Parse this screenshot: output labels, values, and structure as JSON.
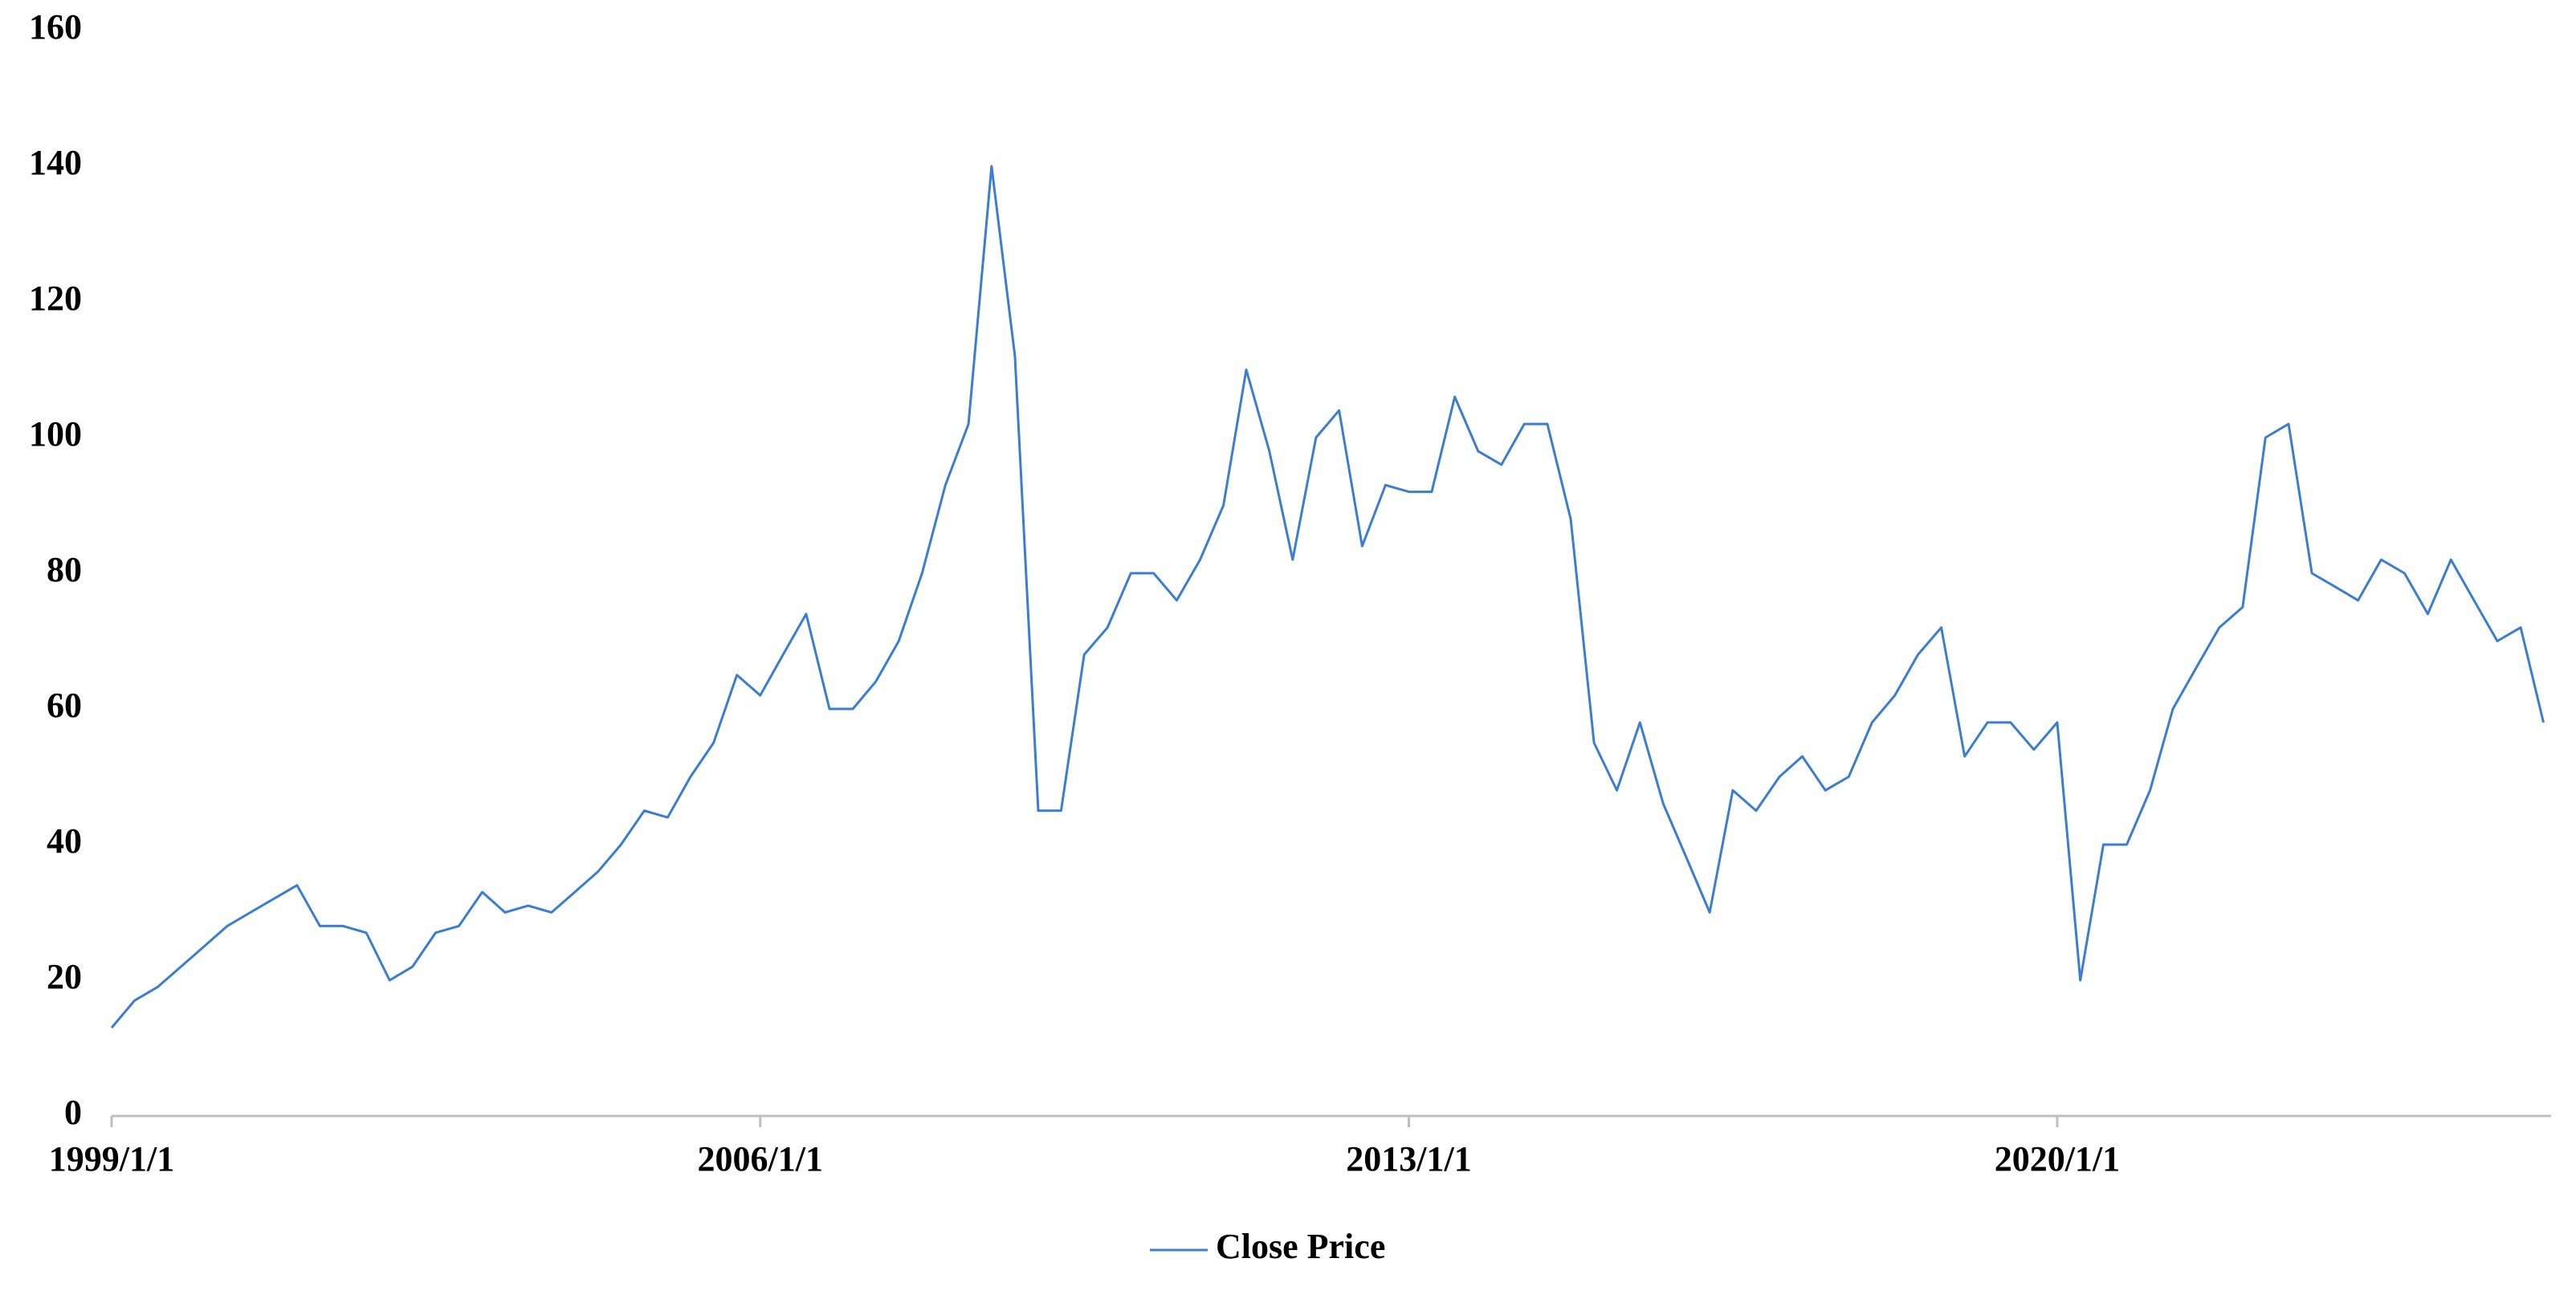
{
  "chart_data": {
    "type": "line",
    "x": [
      "1999/1/1",
      "1999/4/1",
      "1999/7/1",
      "1999/10/1",
      "2000/1/1",
      "2000/4/1",
      "2000/7/1",
      "2000/10/1",
      "2001/1/1",
      "2001/4/1",
      "2001/7/1",
      "2001/10/1",
      "2002/1/1",
      "2002/4/1",
      "2002/7/1",
      "2002/10/1",
      "2003/1/1",
      "2003/4/1",
      "2003/7/1",
      "2003/10/1",
      "2004/1/1",
      "2004/4/1",
      "2004/7/1",
      "2004/10/1",
      "2005/1/1",
      "2005/4/1",
      "2005/7/1",
      "2005/10/1",
      "2006/1/1",
      "2006/4/1",
      "2006/7/1",
      "2006/10/1",
      "2007/1/1",
      "2007/4/1",
      "2007/7/1",
      "2007/10/1",
      "2008/1/1",
      "2008/4/1",
      "2008/7/1",
      "2008/10/1",
      "2009/1/1",
      "2009/4/1",
      "2009/7/1",
      "2009/10/1",
      "2010/1/1",
      "2010/4/1",
      "2010/7/1",
      "2010/10/1",
      "2011/1/1",
      "2011/4/1",
      "2011/7/1",
      "2011/10/1",
      "2012/1/1",
      "2012/4/1",
      "2012/7/1",
      "2012/10/1",
      "2013/1/1",
      "2013/4/1",
      "2013/7/1",
      "2013/10/1",
      "2014/1/1",
      "2014/4/1",
      "2014/7/1",
      "2014/10/1",
      "2015/1/1",
      "2015/4/1",
      "2015/7/1",
      "2015/10/1",
      "2016/1/1",
      "2016/4/1",
      "2016/7/1",
      "2016/10/1",
      "2017/1/1",
      "2017/4/1",
      "2017/7/1",
      "2017/10/1",
      "2018/1/1",
      "2018/4/1",
      "2018/7/1",
      "2018/10/1",
      "2019/1/1",
      "2019/4/1",
      "2019/7/1",
      "2019/10/1",
      "2020/1/1",
      "2020/4/1",
      "2020/7/1",
      "2020/10/1",
      "2021/1/1",
      "2021/4/1",
      "2021/7/1",
      "2021/10/1",
      "2022/1/1",
      "2022/4/1",
      "2022/7/1",
      "2022/10/1",
      "2023/1/1",
      "2023/4/1",
      "2023/7/1",
      "2023/10/1",
      "2024/1/1",
      "2024/4/1",
      "2024/7/1",
      "2024/10/1",
      "2025/1/1",
      "2025/4/1"
    ],
    "series": [
      {
        "name": "Close Price",
        "color": "#3a7dd1",
        "values": [
          13,
          17,
          19,
          22,
          25,
          28,
          30,
          32,
          34,
          28,
          28,
          27,
          20,
          22,
          27,
          28,
          33,
          30,
          31,
          30,
          33,
          36,
          40,
          45,
          44,
          50,
          55,
          65,
          62,
          68,
          74,
          60,
          60,
          64,
          70,
          80,
          93,
          102,
          140,
          112,
          45,
          45,
          68,
          72,
          80,
          80,
          76,
          82,
          90,
          110,
          98,
          82,
          100,
          104,
          84,
          93,
          92,
          92,
          106,
          98,
          96,
          102,
          102,
          88,
          55,
          48,
          58,
          46,
          38,
          30,
          48,
          45,
          50,
          53,
          48,
          50,
          58,
          62,
          68,
          72,
          53,
          58,
          58,
          54,
          58,
          20,
          40,
          40,
          48,
          60,
          66,
          72,
          75,
          100,
          102,
          80,
          78,
          76,
          82,
          80,
          74,
          82,
          76,
          70,
          72,
          58
        ]
      }
    ],
    "xlim": [
      "1999/1/1",
      "2025/5/1"
    ],
    "xticks": [
      "1999/1/1",
      "2006/1/1",
      "2013/1/1",
      "2020/1/1"
    ],
    "ylim": [
      0,
      160
    ],
    "yticks": [
      0,
      20,
      40,
      60,
      80,
      100,
      120,
      140,
      160
    ],
    "grid": false,
    "legend": "bottom"
  }
}
